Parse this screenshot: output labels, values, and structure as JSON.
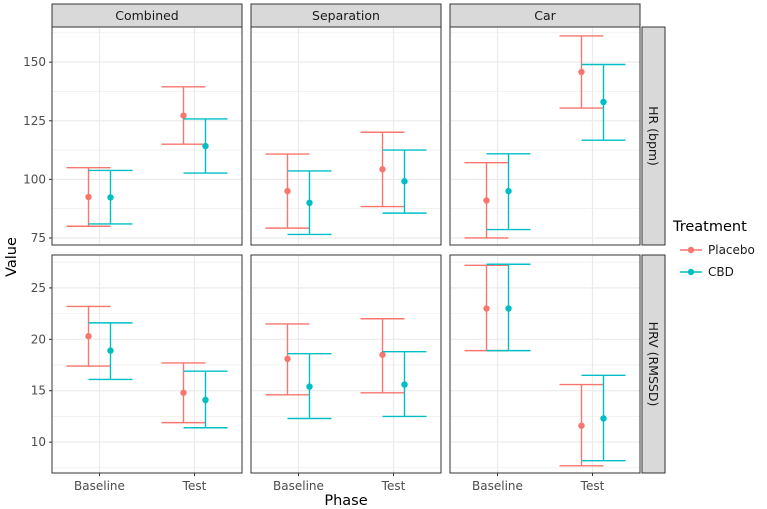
{
  "chart_data": {
    "type": "errorbar",
    "xlabel": "Phase",
    "ylabel": "Value",
    "categories": [
      "Baseline",
      "Test"
    ],
    "columns": [
      "Combined",
      "Separation",
      "Car"
    ],
    "rows": [
      {
        "name": "HR (bpm)",
        "ylim": [
          72,
          165
        ],
        "ticks": [
          75,
          100,
          125,
          150
        ]
      },
      {
        "name": "HRV (RMSSD)",
        "ylim": [
          7,
          28.2
        ],
        "ticks": [
          10,
          15,
          20,
          25
        ]
      }
    ],
    "legend": {
      "title": "Treatment",
      "entries": [
        {
          "name": "Placebo",
          "color": "#F8766D"
        },
        {
          "name": "CBD",
          "color": "#00BFC4"
        }
      ]
    },
    "panels": [
      {
        "row": 0,
        "col": 0,
        "series": [
          {
            "name": "Placebo",
            "points": [
              {
                "x": "Baseline",
                "mean": 92.5,
                "lower": 80,
                "upper": 105
              },
              {
                "x": "Test",
                "mean": 127.2,
                "lower": 115,
                "upper": 139.5
              }
            ]
          },
          {
            "name": "CBD",
            "points": [
              {
                "x": "Baseline",
                "mean": 92.3,
                "lower": 81,
                "upper": 103.8
              },
              {
                "x": "Test",
                "mean": 114.2,
                "lower": 102.7,
                "upper": 125.8
              }
            ]
          }
        ]
      },
      {
        "row": 0,
        "col": 1,
        "series": [
          {
            "name": "Placebo",
            "points": [
              {
                "x": "Baseline",
                "mean": 95,
                "lower": 79.2,
                "upper": 110.8
              },
              {
                "x": "Test",
                "mean": 104.3,
                "lower": 88.4,
                "upper": 120.1
              }
            ]
          },
          {
            "name": "CBD",
            "points": [
              {
                "x": "Baseline",
                "mean": 90,
                "lower": 76.5,
                "upper": 103.6
              },
              {
                "x": "Test",
                "mean": 99.2,
                "lower": 85.6,
                "upper": 112.5
              }
            ]
          }
        ]
      },
      {
        "row": 0,
        "col": 2,
        "series": [
          {
            "name": "Placebo",
            "points": [
              {
                "x": "Baseline",
                "mean": 91,
                "lower": 75,
                "upper": 107.1
              },
              {
                "x": "Test",
                "mean": 145.8,
                "lower": 130.4,
                "upper": 161.2
              }
            ]
          },
          {
            "name": "CBD",
            "points": [
              {
                "x": "Baseline",
                "mean": 95,
                "lower": 78.6,
                "upper": 110.9
              },
              {
                "x": "Test",
                "mean": 133,
                "lower": 116.7,
                "upper": 149
              }
            ]
          }
        ]
      },
      {
        "row": 1,
        "col": 0,
        "series": [
          {
            "name": "Placebo",
            "points": [
              {
                "x": "Baseline",
                "mean": 20.3,
                "lower": 17.4,
                "upper": 23.2
              },
              {
                "x": "Test",
                "mean": 14.8,
                "lower": 11.9,
                "upper": 17.7
              }
            ]
          },
          {
            "name": "CBD",
            "points": [
              {
                "x": "Baseline",
                "mean": 18.9,
                "lower": 16.1,
                "upper": 21.6
              },
              {
                "x": "Test",
                "mean": 14.1,
                "lower": 11.4,
                "upper": 16.9
              }
            ]
          }
        ]
      },
      {
        "row": 1,
        "col": 1,
        "series": [
          {
            "name": "Placebo",
            "points": [
              {
                "x": "Baseline",
                "mean": 18.1,
                "lower": 14.6,
                "upper": 21.5
              },
              {
                "x": "Test",
                "mean": 18.5,
                "lower": 14.8,
                "upper": 22
              }
            ]
          },
          {
            "name": "CBD",
            "points": [
              {
                "x": "Baseline",
                "mean": 15.4,
                "lower": 12.3,
                "upper": 18.6
              },
              {
                "x": "Test",
                "mean": 15.6,
                "lower": 12.5,
                "upper": 18.8
              }
            ]
          }
        ]
      },
      {
        "row": 1,
        "col": 2,
        "series": [
          {
            "name": "Placebo",
            "points": [
              {
                "x": "Baseline",
                "mean": 23,
                "lower": 18.9,
                "upper": 27.2
              },
              {
                "x": "Test",
                "mean": 11.6,
                "lower": 7.7,
                "upper": 15.6
              }
            ]
          },
          {
            "name": "CBD",
            "points": [
              {
                "x": "Baseline",
                "mean": 23,
                "lower": 18.9,
                "upper": 27.3
              },
              {
                "x": "Test",
                "mean": 12.3,
                "lower": 8.2,
                "upper": 16.5
              }
            ]
          }
        ]
      }
    ]
  }
}
